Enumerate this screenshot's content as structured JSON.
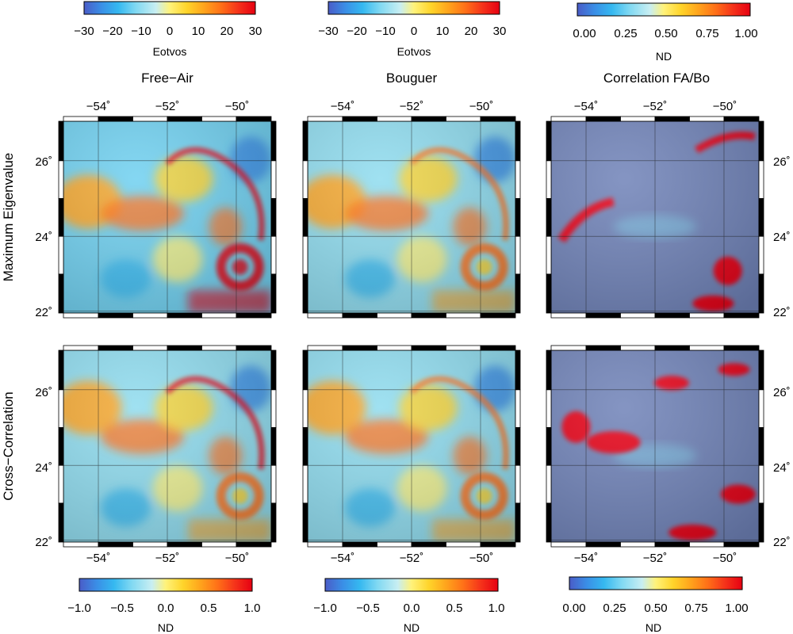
{
  "columns": [
    {
      "title": "Free−Air"
    },
    {
      "title": "Bouguer"
    },
    {
      "title": "Correlation FA/Bo"
    }
  ],
  "rows": [
    {
      "title": "Maximum Eigenvalue"
    },
    {
      "title": "Cross−Correlation"
    }
  ],
  "top_colorbars": [
    {
      "unit": "Eotvos",
      "ticks": [
        "−30",
        "−20",
        "−10",
        "0",
        "10",
        "20",
        "30"
      ]
    },
    {
      "unit": "Eotvos",
      "ticks": [
        "−30",
        "−20",
        "−10",
        "0",
        "10",
        "20",
        "30"
      ]
    },
    {
      "unit": "ND",
      "ticks": [
        "0.00",
        "0.25",
        "0.50",
        "0.75",
        "1.00"
      ]
    }
  ],
  "bottom_colorbars": [
    {
      "unit": "ND",
      "ticks": [
        "−1.0",
        "−0.5",
        "0.0",
        "0.5",
        "1.0"
      ]
    },
    {
      "unit": "ND",
      "ticks": [
        "−1.0",
        "−0.5",
        "0.0",
        "0.5",
        "1.0"
      ]
    },
    {
      "unit": "ND",
      "ticks": [
        "0.00",
        "0.25",
        "0.50",
        "0.75",
        "1.00"
      ]
    }
  ],
  "lon_labels": [
    "−54˚",
    "−52˚",
    "−50˚"
  ],
  "lat_labels": [
    "26˚",
    "24˚",
    "22˚"
  ],
  "colors": {
    "ramp": [
      "#4a5cc7",
      "#3a8ee6",
      "#35b8f0",
      "#7fd8f2",
      "#c8eef2",
      "#fff27a",
      "#ffd42a",
      "#ffa41c",
      "#ff7018",
      "#f5331a",
      "#e60012"
    ],
    "low": "#3a8ee6",
    "mid": "#7fd8f2",
    "high": "#e60012",
    "relief": "#6f7d93"
  }
}
